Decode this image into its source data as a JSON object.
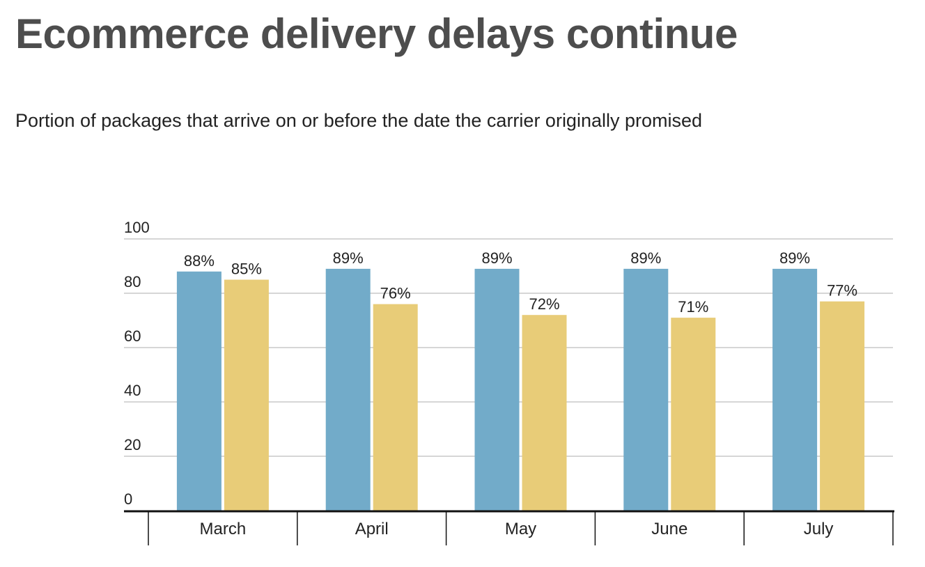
{
  "header": {
    "title": "Ecommerce delivery delays continue",
    "subtitle": "Portion of packages that arrive on or before the date the carrier originally promised"
  },
  "chart_data": {
    "type": "bar",
    "categories": [
      "March",
      "April",
      "May",
      "June",
      "July"
    ],
    "series": [
      {
        "values": [
          88,
          89,
          89,
          89,
          89
        ],
        "labels": [
          "88%",
          "89%",
          "89%",
          "89%",
          "89%"
        ],
        "color": "#72abc9"
      },
      {
        "values": [
          85,
          76,
          72,
          71,
          77
        ],
        "labels": [
          "85%",
          "76%",
          "72%",
          "71%",
          "77%"
        ],
        "color": "#e8cc78"
      }
    ],
    "yticks": [
      "0",
      "20",
      "40",
      "60",
      "80",
      "100"
    ],
    "ylim": [
      0,
      100
    ],
    "grid": true,
    "legend": "none"
  }
}
